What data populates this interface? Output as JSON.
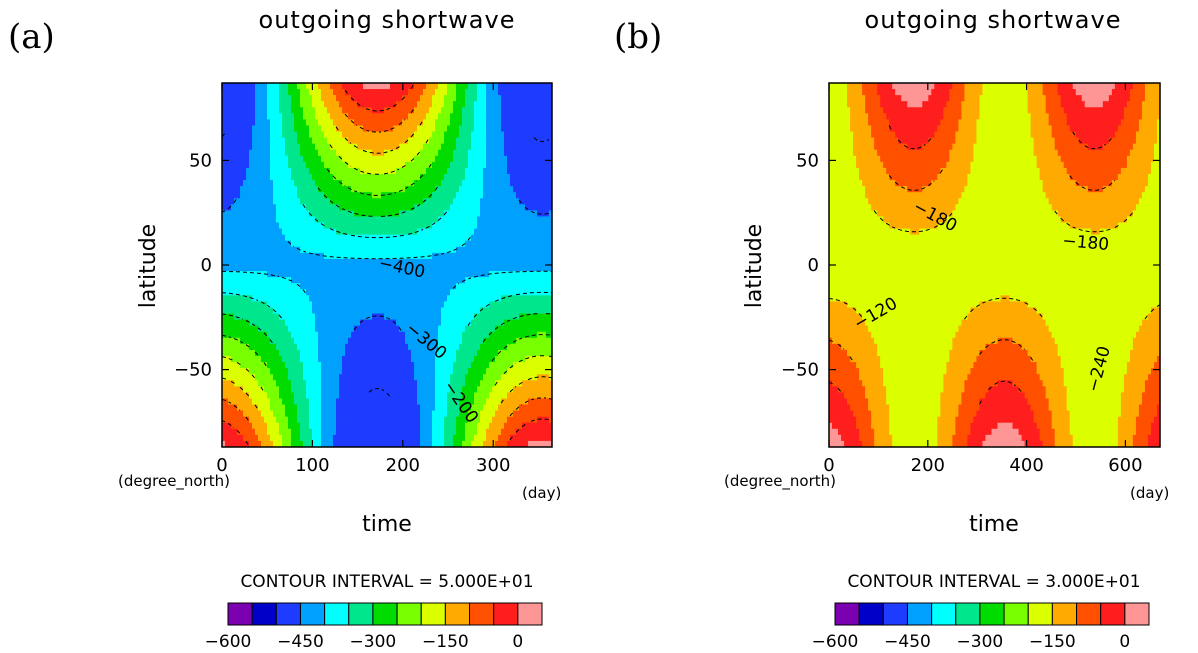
{
  "chart_data": [
    {
      "type": "heatmap",
      "panel_label": "(a)",
      "title": "outgoing shortwave",
      "xlabel": "time",
      "ylabel": "latitude",
      "x_unit": "(day)",
      "y_unit": "(degree_north)",
      "xlim": [
        0,
        365
      ],
      "ylim": [
        -87,
        87
      ],
      "x_ticks": [
        "0",
        "100",
        "200",
        "300"
      ],
      "x_tick_values": [
        0,
        100,
        200,
        300
      ],
      "y_ticks": [
        "50",
        "0",
        "−50"
      ],
      "y_tick_values": [
        50,
        0,
        -50
      ],
      "contour_labels": [
        "−400",
        "−300",
        "−200"
      ],
      "contour_interval_text": "CONTOUR INTERVAL = 5.000E+01",
      "colorbar": {
        "levels": [
          -600,
          -550,
          -500,
          -450,
          -400,
          -350,
          -300,
          -250,
          -200,
          -150,
          -100,
          -50,
          0
        ],
        "tick_labels": [
          "−600",
          "−450",
          "−300",
          "−150",
          "0"
        ],
        "tick_values": [
          -600,
          -450,
          -300,
          -150,
          0
        ]
      },
      "field": {
        "offset": -415,
        "lat_gain": 0.032,
        "day_peak": 172,
        "period": 365,
        "min": -465
      },
      "grid": false
    },
    {
      "type": "heatmap",
      "panel_label": "(b)",
      "title": "outgoing shortwave",
      "xlabel": "time",
      "ylabel": "latitude",
      "x_unit": "(day)",
      "y_unit": "(degree_north)",
      "xlim": [
        0,
        670
      ],
      "ylim": [
        -87,
        87
      ],
      "x_ticks": [
        "0",
        "200",
        "400",
        "600"
      ],
      "x_tick_values": [
        0,
        200,
        400,
        600
      ],
      "y_ticks": [
        "50",
        "0",
        "−50"
      ],
      "y_tick_values": [
        50,
        0,
        -50
      ],
      "contour_labels": [
        "−180",
        "−180",
        "−120",
        "−240"
      ],
      "contour_interval_text": "CONTOUR INTERVAL = 3.000E+01",
      "colorbar": {
        "levels": [
          -600,
          -550,
          -500,
          -450,
          -400,
          -350,
          -300,
          -250,
          -200,
          -150,
          -100,
          -50,
          0
        ],
        "tick_labels": [
          "−600",
          "−450",
          "−300",
          "−150",
          "0"
        ],
        "tick_values": [
          -600,
          -450,
          -300,
          -150,
          0
        ]
      },
      "field": {
        "offset": -190,
        "lat_gain": 0.012,
        "day_peak": 172,
        "period": 365,
        "min": -260
      },
      "grid": false
    }
  ],
  "colors": [
    "#7a00b0",
    "#0000c8",
    "#1e3cff",
    "#00a0ff",
    "#00ffff",
    "#00e68c",
    "#00dc00",
    "#78ff00",
    "#dcff00",
    "#ffaa00",
    "#ff5000",
    "#ff1e1e",
    "#ff9696"
  ]
}
